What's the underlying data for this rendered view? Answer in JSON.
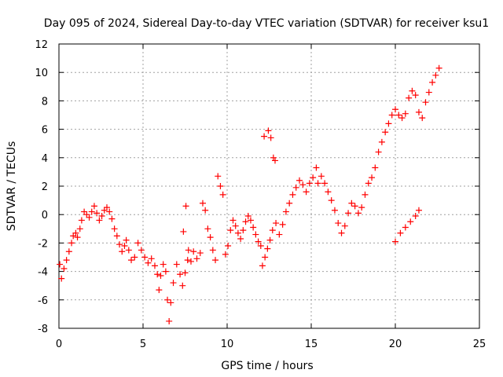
{
  "chart_data": {
    "type": "scatter",
    "title": "Day 095 of 2024, Sidereal Day-to-day VTEC variation (SDTVAR) for receiver ksu1",
    "xlabel": "GPS time / hours",
    "ylabel": "SDTVAR / TECUs",
    "xlim": [
      0,
      25
    ],
    "ylim": [
      -8,
      12
    ],
    "x_ticks": [
      "0",
      "5",
      "10",
      "15",
      "20",
      "25"
    ],
    "x_tick_values": [
      0,
      5,
      10,
      15,
      20,
      25
    ],
    "y_ticks": [
      "-8",
      "-6",
      "-4",
      "-2",
      "0",
      "2",
      "4",
      "6",
      "8",
      "10",
      "12"
    ],
    "y_tick_values": [
      -8,
      -6,
      -4,
      -2,
      0,
      2,
      4,
      6,
      8,
      10,
      12
    ],
    "grid": true,
    "marker": "plus",
    "series": [
      {
        "name": "ksu1",
        "color": "#ff0000",
        "points": [
          [
            0.05,
            -3.5
          ],
          [
            0.15,
            -4.5
          ],
          [
            0.3,
            -3.8
          ],
          [
            0.45,
            -3.2
          ],
          [
            0.6,
            -2.6
          ],
          [
            0.75,
            -2.0
          ],
          [
            0.85,
            -1.5
          ],
          [
            1.0,
            -1.3
          ],
          [
            1.1,
            -1.6
          ],
          [
            1.25,
            -1.0
          ],
          [
            1.35,
            -0.4
          ],
          [
            1.5,
            0.2
          ],
          [
            1.65,
            0.0
          ],
          [
            1.8,
            -0.2
          ],
          [
            1.95,
            0.2
          ],
          [
            2.1,
            0.6
          ],
          [
            2.25,
            0.1
          ],
          [
            2.4,
            -0.4
          ],
          [
            2.55,
            -0.1
          ],
          [
            2.7,
            0.3
          ],
          [
            2.85,
            0.5
          ],
          [
            3.0,
            0.2
          ],
          [
            3.15,
            -0.3
          ],
          [
            3.3,
            -1.0
          ],
          [
            3.45,
            -1.5
          ],
          [
            3.6,
            -2.1
          ],
          [
            3.75,
            -2.6
          ],
          [
            3.9,
            -2.2
          ],
          [
            4.0,
            -1.8
          ],
          [
            4.15,
            -2.5
          ],
          [
            4.3,
            -3.2
          ],
          [
            4.5,
            -3.0
          ],
          [
            4.7,
            -2.0
          ],
          [
            4.9,
            -2.5
          ],
          [
            5.1,
            -3.0
          ],
          [
            5.3,
            -3.4
          ],
          [
            5.5,
            -3.1
          ],
          [
            5.7,
            -3.6
          ],
          [
            5.85,
            -4.2
          ],
          [
            5.95,
            -5.3
          ],
          [
            6.05,
            -4.3
          ],
          [
            6.2,
            -3.5
          ],
          [
            6.35,
            -4.0
          ],
          [
            6.45,
            -6.0
          ],
          [
            6.55,
            -7.5
          ],
          [
            6.65,
            -6.2
          ],
          [
            6.8,
            -4.8
          ],
          [
            7.0,
            -3.5
          ],
          [
            7.2,
            -4.2
          ],
          [
            7.35,
            -5.0
          ],
          [
            7.5,
            -4.1
          ],
          [
            7.65,
            -3.2
          ],
          [
            7.4,
            -1.2
          ],
          [
            7.55,
            0.6
          ],
          [
            7.7,
            -2.5
          ],
          [
            7.85,
            -3.3
          ],
          [
            8.0,
            -2.6
          ],
          [
            8.2,
            -3.1
          ],
          [
            8.4,
            -2.7
          ],
          [
            8.55,
            0.8
          ],
          [
            8.7,
            0.3
          ],
          [
            8.85,
            -1.0
          ],
          [
            9.0,
            -1.6
          ],
          [
            9.15,
            -2.5
          ],
          [
            9.3,
            -3.2
          ],
          [
            9.45,
            2.7
          ],
          [
            9.6,
            2.0
          ],
          [
            9.75,
            1.4
          ],
          [
            9.9,
            -2.8
          ],
          [
            10.05,
            -2.2
          ],
          [
            10.2,
            -1.1
          ],
          [
            10.35,
            -0.4
          ],
          [
            10.5,
            -0.8
          ],
          [
            10.65,
            -1.3
          ],
          [
            10.8,
            -1.7
          ],
          [
            10.95,
            -1.1
          ],
          [
            11.1,
            -0.5
          ],
          [
            11.25,
            -0.1
          ],
          [
            11.4,
            -0.4
          ],
          [
            11.55,
            -0.9
          ],
          [
            11.7,
            -1.4
          ],
          [
            11.85,
            -1.9
          ],
          [
            12.0,
            -2.2
          ],
          [
            12.1,
            -3.6
          ],
          [
            12.25,
            -3.0
          ],
          [
            12.4,
            -2.4
          ],
          [
            12.55,
            -1.8
          ],
          [
            12.7,
            -1.1
          ],
          [
            12.9,
            -0.6
          ],
          [
            13.1,
            -1.4
          ],
          [
            13.3,
            -0.7
          ],
          [
            13.5,
            0.2
          ],
          [
            13.7,
            0.8
          ],
          [
            13.9,
            1.4
          ],
          [
            14.1,
            1.9
          ],
          [
            14.3,
            2.4
          ],
          [
            14.5,
            2.1
          ],
          [
            14.7,
            1.6
          ],
          [
            14.9,
            2.2
          ],
          [
            15.1,
            2.6
          ],
          [
            15.3,
            3.3
          ],
          [
            15.4,
            2.2
          ],
          [
            15.6,
            2.7
          ],
          [
            15.8,
            2.2
          ],
          [
            16.0,
            1.6
          ],
          [
            16.2,
            1.0
          ],
          [
            16.4,
            0.3
          ],
          [
            16.6,
            -0.6
          ],
          [
            16.8,
            -1.3
          ],
          [
            17.0,
            -0.8
          ],
          [
            17.2,
            0.1
          ],
          [
            17.4,
            0.8
          ],
          [
            17.6,
            0.6
          ],
          [
            17.8,
            0.1
          ],
          [
            18.0,
            0.5
          ],
          [
            18.2,
            1.4
          ],
          [
            18.4,
            2.2
          ],
          [
            18.6,
            2.6
          ],
          [
            18.8,
            3.3
          ],
          [
            19.0,
            4.4
          ],
          [
            19.2,
            5.1
          ],
          [
            19.4,
            5.8
          ],
          [
            19.6,
            6.4
          ],
          [
            19.8,
            7.0
          ],
          [
            20.0,
            7.4
          ],
          [
            20.2,
            7.0
          ],
          [
            20.4,
            6.8
          ],
          [
            20.6,
            7.1
          ],
          [
            20.8,
            8.2
          ],
          [
            21.0,
            8.7
          ],
          [
            21.2,
            8.4
          ],
          [
            21.4,
            7.2
          ],
          [
            21.6,
            6.8
          ],
          [
            21.8,
            7.9
          ],
          [
            22.0,
            8.6
          ],
          [
            22.2,
            9.3
          ],
          [
            22.4,
            9.8
          ],
          [
            22.6,
            10.3
          ],
          [
            20.0,
            -1.9
          ],
          [
            20.3,
            -1.3
          ],
          [
            20.6,
            -0.9
          ],
          [
            20.9,
            -0.5
          ],
          [
            21.2,
            -0.1
          ],
          [
            21.4,
            0.3
          ],
          [
            12.2,
            5.5
          ],
          [
            12.45,
            5.9
          ],
          [
            12.6,
            5.4
          ],
          [
            12.75,
            4.0
          ],
          [
            12.85,
            3.8
          ]
        ]
      }
    ]
  }
}
